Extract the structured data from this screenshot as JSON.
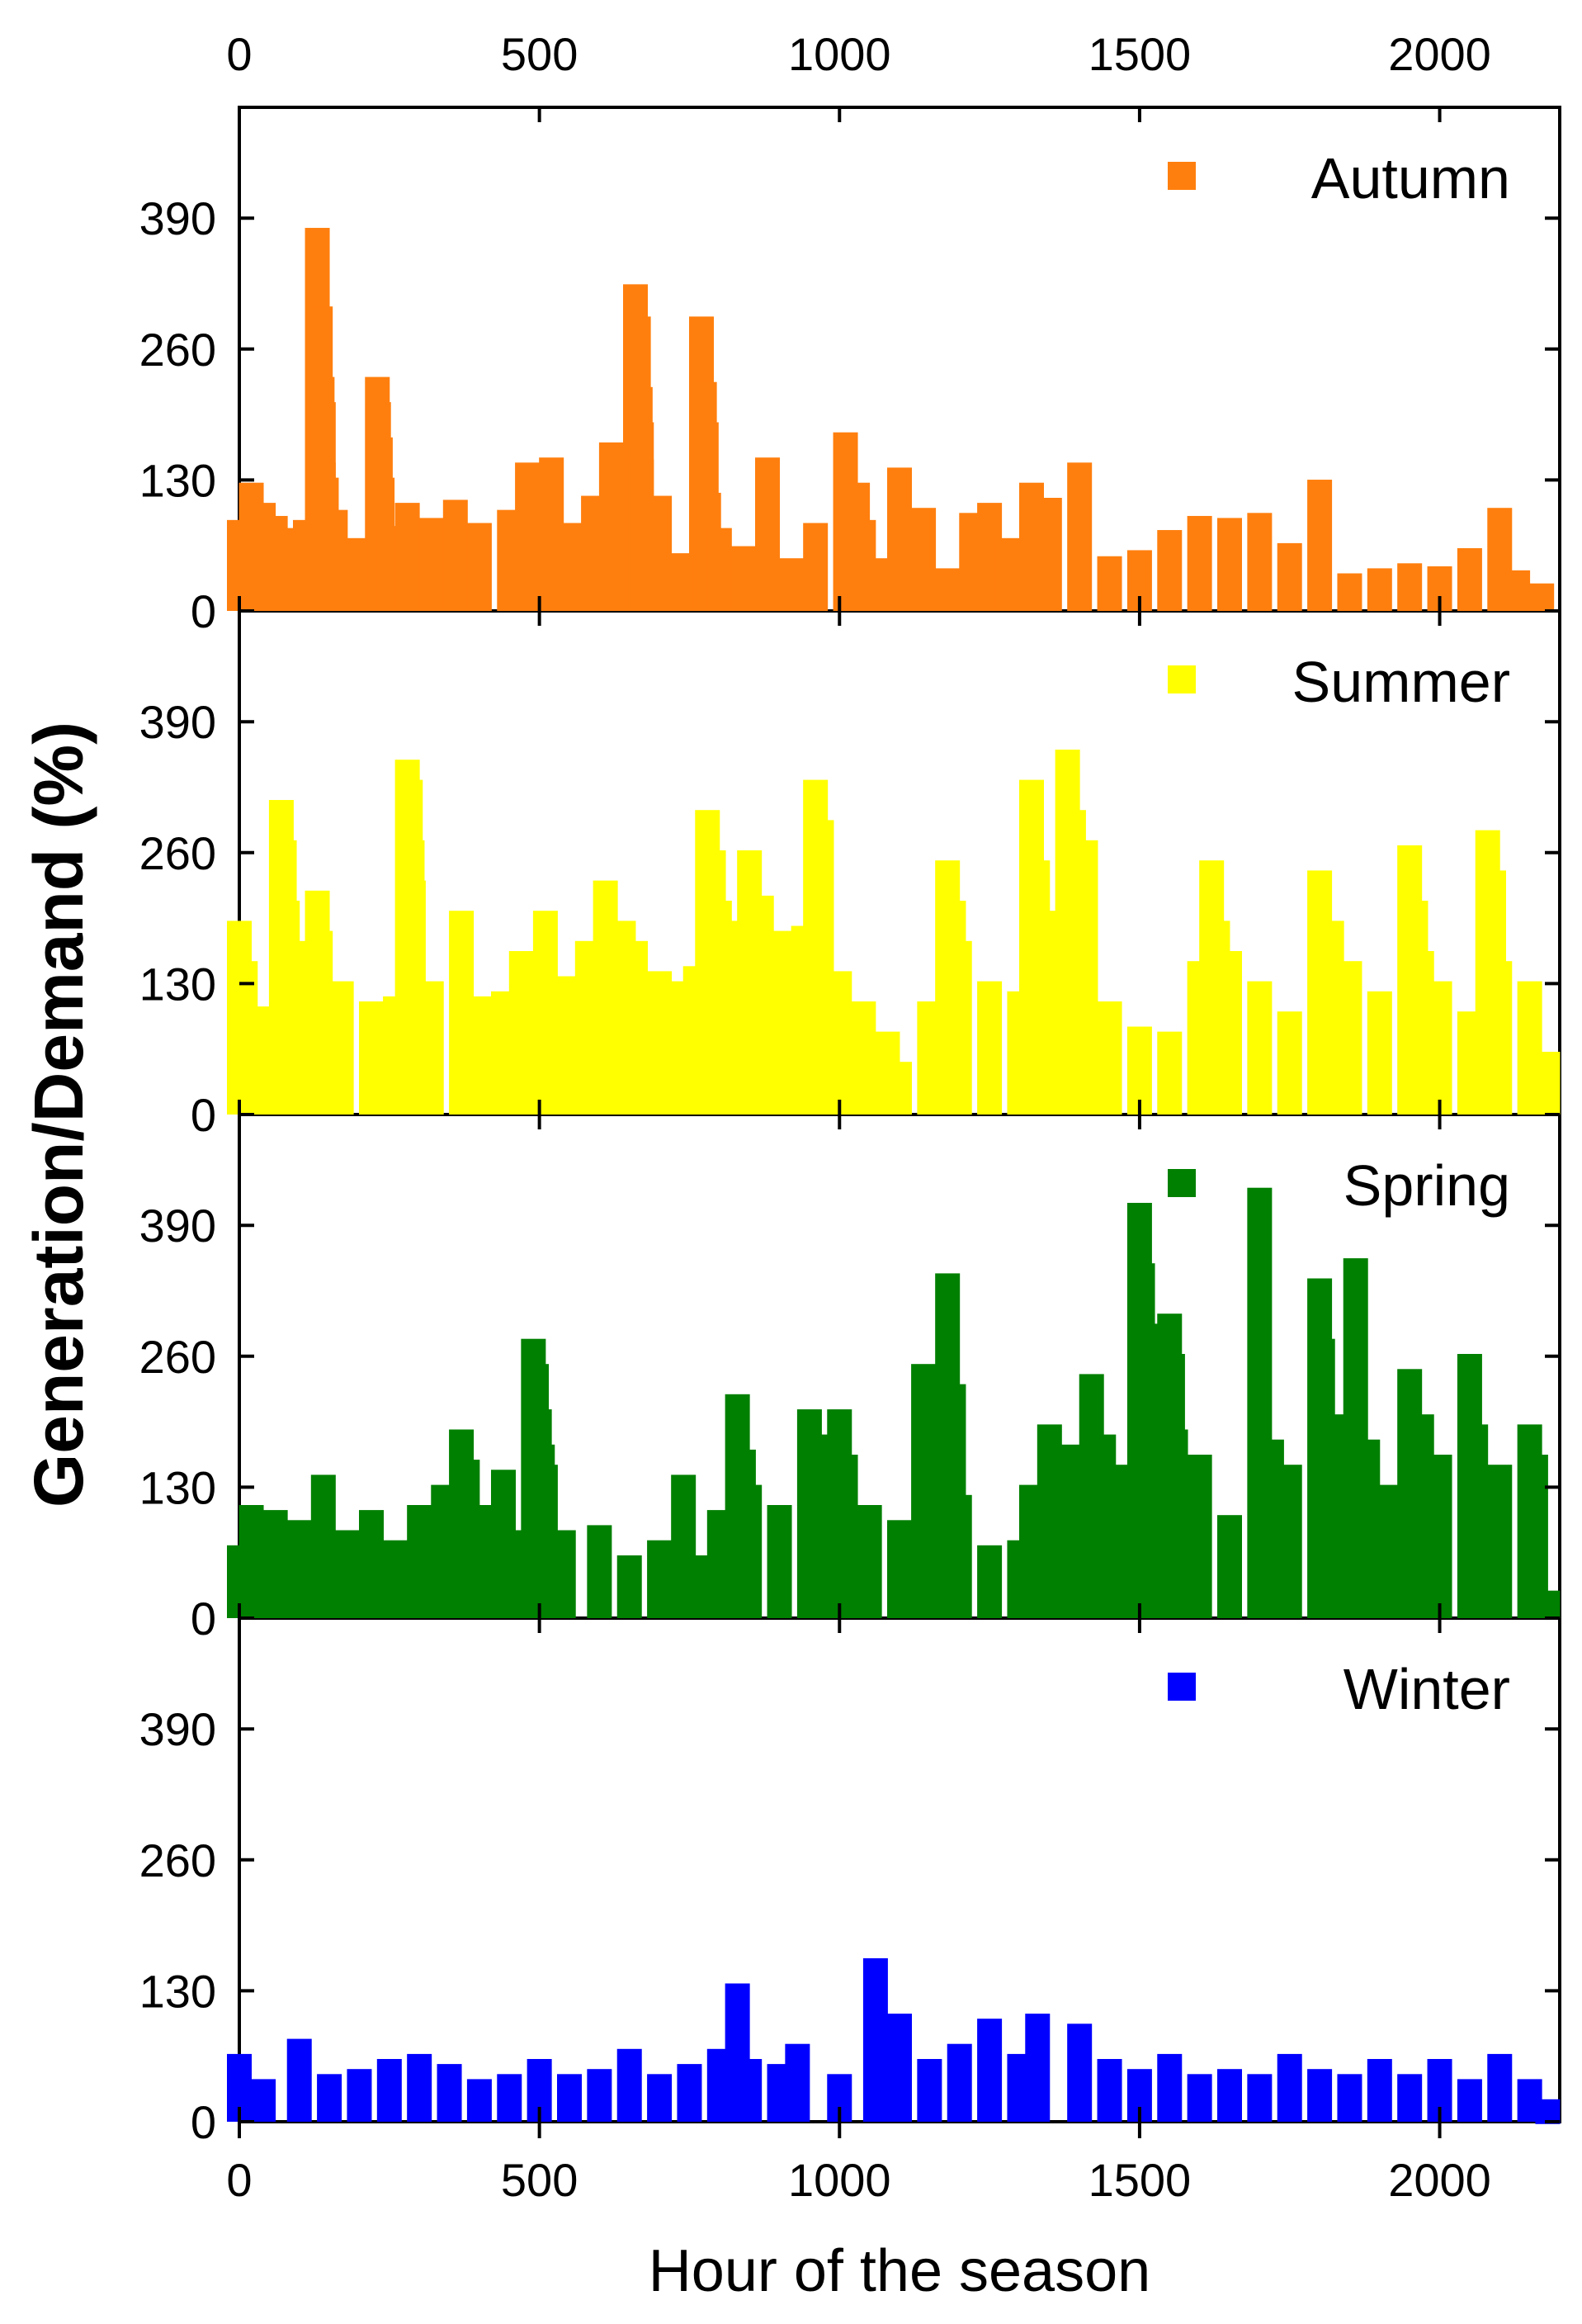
{
  "chart_data": {
    "type": "scatter",
    "xlabel": "Hour of the season",
    "ylabel": "Generation/Demand  (%)",
    "xlim": [
      0,
      2200
    ],
    "ylim": [
      0,
      500
    ],
    "xticks": [
      0,
      500,
      1000,
      1500,
      2000
    ],
    "yticks": [
      0,
      130,
      260,
      390
    ],
    "series": [
      {
        "name": "Autumn",
        "color": "#FF7F0E",
        "points": [
          [
            0,
            78
          ],
          [
            20,
            115
          ],
          [
            40,
            95
          ],
          [
            60,
            82
          ],
          [
            80,
            70
          ],
          [
            110,
            78
          ],
          [
            130,
            368
          ],
          [
            135,
            290
          ],
          [
            138,
            220
          ],
          [
            140,
            195
          ],
          [
            140,
            135
          ],
          [
            145,
            120
          ],
          [
            160,
            88
          ],
          [
            190,
            60
          ],
          [
            230,
            220
          ],
          [
            232,
            195
          ],
          [
            235,
            160
          ],
          [
            238,
            120
          ],
          [
            250,
            72
          ],
          [
            280,
            95
          ],
          [
            320,
            80
          ],
          [
            360,
            98
          ],
          [
            400,
            75
          ],
          [
            450,
            88
          ],
          [
            480,
            135
          ],
          [
            520,
            140
          ],
          [
            560,
            75
          ],
          [
            590,
            102
          ],
          [
            620,
            155
          ],
          [
            640,
            140
          ],
          [
            660,
            312
          ],
          [
            665,
            280
          ],
          [
            668,
            210
          ],
          [
            670,
            175
          ],
          [
            670,
            138
          ],
          [
            700,
            102
          ],
          [
            740,
            45
          ],
          [
            770,
            280
          ],
          [
            775,
            215
          ],
          [
            778,
            175
          ],
          [
            782,
            105
          ],
          [
            800,
            70
          ],
          [
            840,
            52
          ],
          [
            880,
            140
          ],
          [
            920,
            40
          ],
          [
            960,
            75
          ],
          [
            1010,
            165
          ],
          [
            1030,
            115
          ],
          [
            1040,
            78
          ],
          [
            1070,
            40
          ],
          [
            1100,
            130
          ],
          [
            1140,
            90
          ],
          [
            1180,
            30
          ],
          [
            1220,
            85
          ],
          [
            1250,
            95
          ],
          [
            1280,
            60
          ],
          [
            1320,
            115
          ],
          [
            1350,
            100
          ],
          [
            1400,
            135
          ],
          [
            1450,
            42
          ],
          [
            1500,
            48
          ],
          [
            1550,
            68
          ],
          [
            1600,
            82
          ],
          [
            1650,
            80
          ],
          [
            1700,
            85
          ],
          [
            1750,
            55
          ],
          [
            1800,
            118
          ],
          [
            1850,
            25
          ],
          [
            1900,
            30
          ],
          [
            1950,
            35
          ],
          [
            2000,
            32
          ],
          [
            2050,
            50
          ],
          [
            2100,
            90
          ],
          [
            2130,
            28
          ],
          [
            2170,
            15
          ]
        ]
      },
      {
        "name": "Summer",
        "color": "#FFFF00",
        "points": [
          [
            0,
            180
          ],
          [
            10,
            140
          ],
          [
            25,
            70
          ],
          [
            40,
            95
          ],
          [
            70,
            300
          ],
          [
            75,
            260
          ],
          [
            80,
            200
          ],
          [
            90,
            160
          ],
          [
            130,
            210
          ],
          [
            135,
            170
          ],
          [
            170,
            120
          ],
          [
            220,
            100
          ],
          [
            260,
            105
          ],
          [
            280,
            340
          ],
          [
            285,
            320
          ],
          [
            288,
            260
          ],
          [
            290,
            220
          ],
          [
            320,
            120
          ],
          [
            370,
            190
          ],
          [
            400,
            105
          ],
          [
            440,
            110
          ],
          [
            470,
            150
          ],
          [
            510,
            190
          ],
          [
            540,
            125
          ],
          [
            580,
            160
          ],
          [
            610,
            220
          ],
          [
            640,
            180
          ],
          [
            660,
            160
          ],
          [
            700,
            130
          ],
          [
            740,
            120
          ],
          [
            760,
            135
          ],
          [
            780,
            290
          ],
          [
            790,
            250
          ],
          [
            800,
            200
          ],
          [
            820,
            180
          ],
          [
            850,
            250
          ],
          [
            870,
            205
          ],
          [
            900,
            170
          ],
          [
            940,
            175
          ],
          [
            960,
            320
          ],
          [
            970,
            280
          ],
          [
            1000,
            130
          ],
          [
            1040,
            100
          ],
          [
            1080,
            70
          ],
          [
            1100,
            40
          ],
          [
            1150,
            100
          ],
          [
            1180,
            240
          ],
          [
            1190,
            200
          ],
          [
            1200,
            160
          ],
          [
            1250,
            120
          ],
          [
            1300,
            110
          ],
          [
            1320,
            320
          ],
          [
            1330,
            240
          ],
          [
            1340,
            190
          ],
          [
            1380,
            350
          ],
          [
            1390,
            290
          ],
          [
            1410,
            260
          ],
          [
            1450,
            100
          ],
          [
            1500,
            75
          ],
          [
            1550,
            70
          ],
          [
            1600,
            140
          ],
          [
            1620,
            240
          ],
          [
            1630,
            180
          ],
          [
            1650,
            150
          ],
          [
            1700,
            120
          ],
          [
            1750,
            90
          ],
          [
            1800,
            230
          ],
          [
            1820,
            180
          ],
          [
            1850,
            140
          ],
          [
            1900,
            110
          ],
          [
            1950,
            255
          ],
          [
            1960,
            200
          ],
          [
            1970,
            150
          ],
          [
            2000,
            120
          ],
          [
            2050,
            90
          ],
          [
            2080,
            270
          ],
          [
            2090,
            230
          ],
          [
            2100,
            140
          ],
          [
            2150,
            120
          ],
          [
            2180,
            50
          ]
        ]
      },
      {
        "name": "Spring",
        "color": "#008000",
        "points": [
          [
            0,
            60
          ],
          [
            20,
            100
          ],
          [
            60,
            95
          ],
          [
            100,
            85
          ],
          [
            140,
            130
          ],
          [
            180,
            75
          ],
          [
            220,
            95
          ],
          [
            260,
            65
          ],
          [
            300,
            100
          ],
          [
            340,
            120
          ],
          [
            370,
            175
          ],
          [
            380,
            145
          ],
          [
            400,
            100
          ],
          [
            440,
            135
          ],
          [
            480,
            75
          ],
          [
            490,
            265
          ],
          [
            495,
            240
          ],
          [
            500,
            195
          ],
          [
            505,
            160
          ],
          [
            510,
            140
          ],
          [
            540,
            75
          ],
          [
            600,
            80
          ],
          [
            650,
            50
          ],
          [
            700,
            65
          ],
          [
            740,
            130
          ],
          [
            770,
            50
          ],
          [
            800,
            95
          ],
          [
            830,
            210
          ],
          [
            840,
            155
          ],
          [
            850,
            120
          ],
          [
            900,
            100
          ],
          [
            950,
            195
          ],
          [
            960,
            170
          ],
          [
            1000,
            195
          ],
          [
            1010,
            150
          ],
          [
            1050,
            100
          ],
          [
            1100,
            85
          ],
          [
            1140,
            240
          ],
          [
            1150,
            200
          ],
          [
            1160,
            140
          ],
          [
            1180,
            330
          ],
          [
            1190,
            220
          ],
          [
            1200,
            110
          ],
          [
            1250,
            60
          ],
          [
            1300,
            65
          ],
          [
            1320,
            120
          ],
          [
            1350,
            180
          ],
          [
            1380,
            160
          ],
          [
            1420,
            230
          ],
          [
            1440,
            170
          ],
          [
            1480,
            140
          ],
          [
            1500,
            400
          ],
          [
            1505,
            340
          ],
          [
            1510,
            280
          ],
          [
            1515,
            220
          ],
          [
            1550,
            290
          ],
          [
            1555,
            250
          ],
          [
            1560,
            175
          ],
          [
            1600,
            150
          ],
          [
            1650,
            90
          ],
          [
            1700,
            415
          ],
          [
            1720,
            165
          ],
          [
            1750,
            140
          ],
          [
            1800,
            325
          ],
          [
            1805,
            265
          ],
          [
            1820,
            190
          ],
          [
            1860,
            345
          ],
          [
            1880,
            165
          ],
          [
            1920,
            120
          ],
          [
            1950,
            235
          ],
          [
            1970,
            190
          ],
          [
            2000,
            150
          ],
          [
            2050,
            250
          ],
          [
            2060,
            180
          ],
          [
            2100,
            140
          ],
          [
            2150,
            180
          ],
          [
            2160,
            150
          ],
          [
            2180,
            15
          ]
        ]
      },
      {
        "name": "Winter",
        "color": "#0000FF",
        "points": [
          [
            0,
            55
          ],
          [
            40,
            30
          ],
          [
            100,
            70
          ],
          [
            150,
            35
          ],
          [
            200,
            40
          ],
          [
            250,
            50
          ],
          [
            300,
            55
          ],
          [
            350,
            45
          ],
          [
            400,
            30
          ],
          [
            450,
            35
          ],
          [
            500,
            50
          ],
          [
            550,
            35
          ],
          [
            600,
            40
          ],
          [
            650,
            60
          ],
          [
            700,
            35
          ],
          [
            750,
            45
          ],
          [
            800,
            60
          ],
          [
            830,
            125
          ],
          [
            850,
            50
          ],
          [
            900,
            45
          ],
          [
            930,
            65
          ],
          [
            1000,
            35
          ],
          [
            1060,
            150
          ],
          [
            1070,
            85
          ],
          [
            1100,
            95
          ],
          [
            1150,
            50
          ],
          [
            1200,
            65
          ],
          [
            1250,
            90
          ],
          [
            1300,
            55
          ],
          [
            1330,
            95
          ],
          [
            1400,
            85
          ],
          [
            1450,
            50
          ],
          [
            1500,
            40
          ],
          [
            1550,
            55
          ],
          [
            1600,
            35
          ],
          [
            1650,
            40
          ],
          [
            1700,
            35
          ],
          [
            1750,
            55
          ],
          [
            1800,
            40
          ],
          [
            1850,
            35
          ],
          [
            1900,
            50
          ],
          [
            1950,
            35
          ],
          [
            2000,
            50
          ],
          [
            2050,
            30
          ],
          [
            2100,
            55
          ],
          [
            2150,
            30
          ],
          [
            2180,
            10
          ]
        ]
      }
    ]
  }
}
